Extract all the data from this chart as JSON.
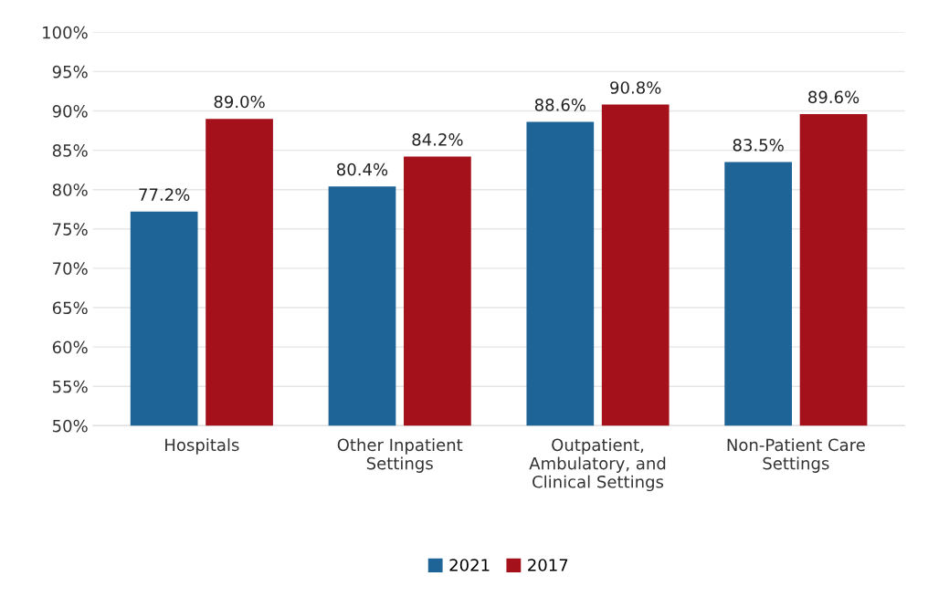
{
  "chart_data": {
    "type": "bar",
    "categories": [
      "Hospitals",
      "Other Inpatient\nSettings",
      "Outpatient,\nAmbulatory, and\nClinical Settings",
      "Non-Patient Care\nSettings"
    ],
    "series": [
      {
        "name": "2021",
        "color": "#1f6497",
        "values": [
          77.2,
          80.4,
          88.6,
          83.5
        ],
        "value_labels": [
          "77.2%",
          "80.4%",
          "88.6%",
          "83.5%"
        ]
      },
      {
        "name": "2017",
        "color": "#a5111a",
        "values": [
          89.0,
          84.2,
          90.8,
          89.6
        ],
        "value_labels": [
          "89.0%",
          "84.2%",
          "90.8%",
          "89.6%"
        ]
      }
    ],
    "ylim": [
      50,
      100
    ],
    "yticks": [
      {
        "value": 50,
        "label": "50%"
      },
      {
        "value": 55,
        "label": "55%"
      },
      {
        "value": 60,
        "label": "60%"
      },
      {
        "value": 65,
        "label": "65%"
      },
      {
        "value": 70,
        "label": "70%"
      },
      {
        "value": 75,
        "label": "75%"
      },
      {
        "value": 80,
        "label": "80%"
      },
      {
        "value": 85,
        "label": "85%"
      },
      {
        "value": 90,
        "label": "90%"
      },
      {
        "value": 95,
        "label": "95%"
      },
      {
        "value": 100,
        "label": "100%"
      }
    ],
    "grid": "y",
    "legend": "bottom"
  }
}
